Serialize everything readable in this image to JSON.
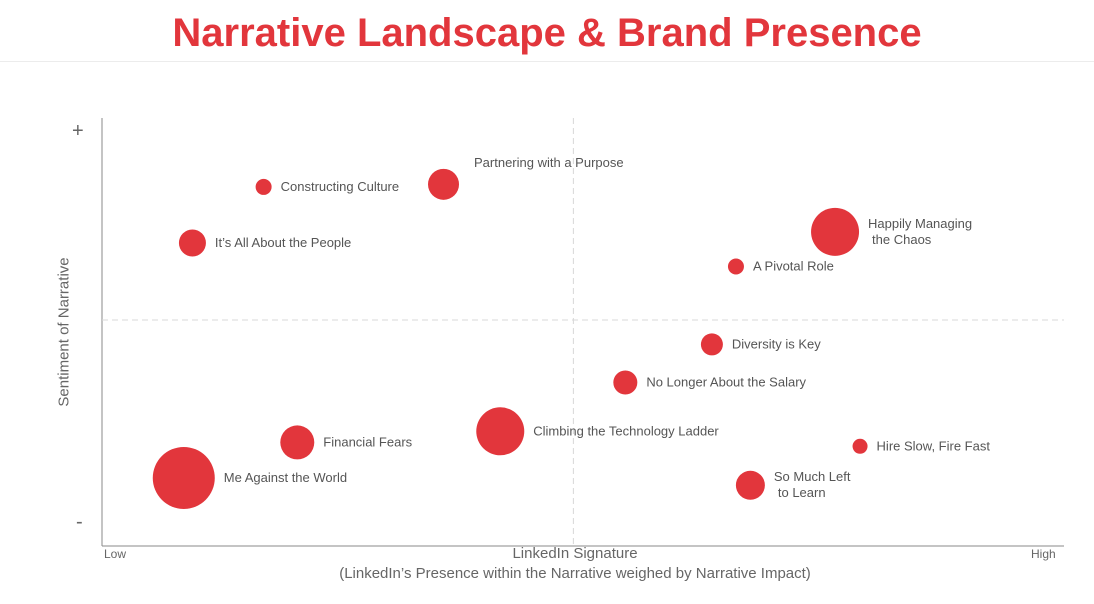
{
  "header": {
    "title": "Narrative Landscape & Brand Presence"
  },
  "colors": {
    "accent": "#e2363c",
    "axis": "#666666",
    "grid": "#d8d8d8",
    "text": "#555555"
  },
  "chart_data": {
    "type": "scatter",
    "title": "Narrative Landscape & Brand Presence",
    "xlabel": "LinkedIn Signature",
    "xlabel_sub": "(LinkedIn’s Presence within the Narrative weighed by Narrative Impact)",
    "ylabel": "Sentiment of Narrative",
    "x_tick_low": "Low",
    "x_tick_high": "High",
    "y_tick_high": "+",
    "y_tick_low": "-",
    "xlim": [
      0,
      100
    ],
    "ylim": [
      0,
      100
    ],
    "grid": false,
    "quadrant_lines": {
      "x": 49,
      "y": 52.8
    },
    "points": [
      {
        "label": "Partnering with a Purpose",
        "x": 35.5,
        "y": 84.5,
        "size": 31,
        "label_pos": "above-right"
      },
      {
        "label": "Constructing Culture",
        "x": 16.8,
        "y": 83.9,
        "size": 16,
        "label_pos": "right"
      },
      {
        "label": "It’s All About the People",
        "x": 9.4,
        "y": 70.8,
        "size": 27,
        "label_pos": "right"
      },
      {
        "label": "Happily Managing\nthe Chaos",
        "x": 76.2,
        "y": 73.4,
        "size": 48,
        "label_pos": "right"
      },
      {
        "label": "A Pivotal Role",
        "x": 65.9,
        "y": 65.3,
        "size": 16,
        "label_pos": "right"
      },
      {
        "label": "Diversity is Key",
        "x": 63.4,
        "y": 47.1,
        "size": 22,
        "label_pos": "right"
      },
      {
        "label": "No Longer About the Salary",
        "x": 54.4,
        "y": 38.2,
        "size": 24,
        "label_pos": "right"
      },
      {
        "label": "Climbing the Technology Ladder",
        "x": 41.4,
        "y": 26.8,
        "size": 48,
        "label_pos": "right"
      },
      {
        "label": "Financial Fears",
        "x": 20.3,
        "y": 24.2,
        "size": 34,
        "label_pos": "right"
      },
      {
        "label": "Hire Slow, Fire Fast",
        "x": 78.8,
        "y": 23.3,
        "size": 15,
        "label_pos": "right"
      },
      {
        "label": "Me Against the World",
        "x": 8.5,
        "y": 15.9,
        "size": 62,
        "label_pos": "right"
      },
      {
        "label": "So Much Left\nto Learn",
        "x": 67.4,
        "y": 14.2,
        "size": 29,
        "label_pos": "right"
      }
    ]
  }
}
